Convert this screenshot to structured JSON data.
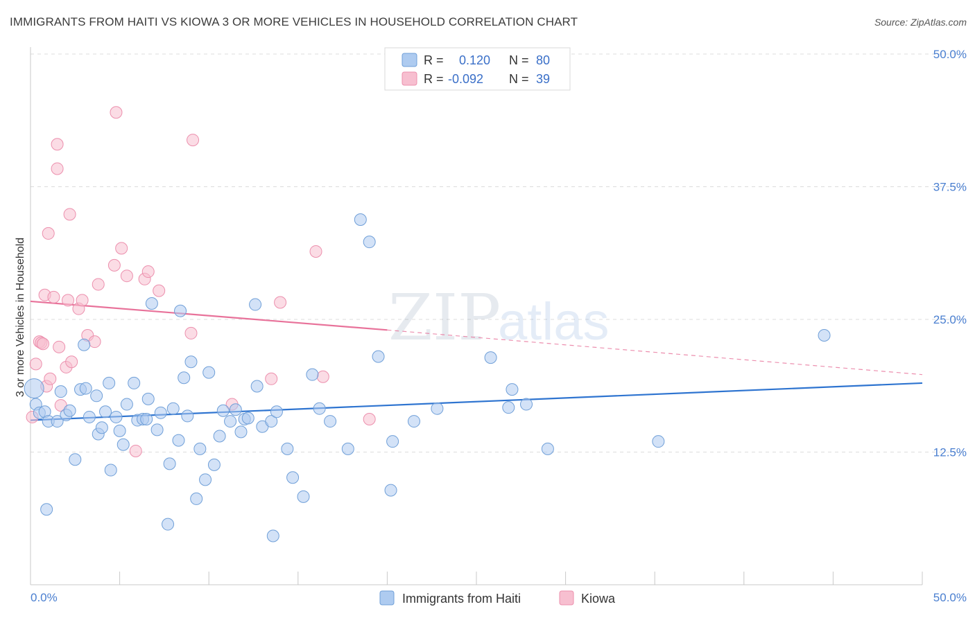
{
  "title": "IMMIGRANTS FROM HAITI VS KIOWA 3 OR MORE VEHICLES IN HOUSEHOLD CORRELATION CHART",
  "source": "Source: ZipAtlas.com",
  "watermark": "ZIPatlas",
  "colors": {
    "blue_fill": "#aecbf0",
    "blue_stroke": "#6f9fd8",
    "blue_line": "#2e74d0",
    "pink_fill": "#f7bfd0",
    "pink_stroke": "#ec8fad",
    "pink_line": "#e8729a",
    "tick_text": "#4a7fd0"
  },
  "legend": {
    "rows": [
      {
        "r_label": "R =",
        "r_value": "0.120",
        "n_label": "N =",
        "n_value": "80"
      },
      {
        "r_label": "R =",
        "r_value": "-0.092",
        "n_label": "N =",
        "n_value": "39"
      }
    ]
  },
  "chart_data": {
    "type": "scatter",
    "xlabel": "",
    "ylabel": "3 or more Vehicles in Household",
    "xlim": [
      0,
      50
    ],
    "ylim": [
      0,
      50
    ],
    "x_tick_labels": [
      "0.0%",
      "50.0%"
    ],
    "y_tick_labels": [
      "12.5%",
      "25.0%",
      "37.5%",
      "50.0%"
    ],
    "y_ticks": [
      12.5,
      25.0,
      37.5,
      50.0
    ],
    "grid": true,
    "legend_position": "bottom-center",
    "series": [
      {
        "name": "Immigrants from Haiti",
        "color": "blue",
        "trend": {
          "x": [
            0,
            50
          ],
          "y": [
            15.5,
            19.0
          ],
          "style": "solid"
        },
        "points": [
          [
            0.2,
            18.5
          ],
          [
            0.3,
            17.0
          ],
          [
            0.5,
            16.2
          ],
          [
            0.8,
            16.3
          ],
          [
            1.0,
            15.4
          ],
          [
            1.5,
            15.4
          ],
          [
            1.7,
            18.2
          ],
          [
            2.0,
            16.0
          ],
          [
            2.2,
            16.4
          ],
          [
            2.5,
            11.8
          ],
          [
            2.8,
            18.4
          ],
          [
            3.0,
            22.6
          ],
          [
            3.1,
            18.5
          ],
          [
            3.3,
            15.8
          ],
          [
            3.7,
            17.8
          ],
          [
            3.8,
            14.2
          ],
          [
            4.0,
            14.8
          ],
          [
            4.2,
            16.3
          ],
          [
            4.4,
            19.0
          ],
          [
            4.5,
            10.8
          ],
          [
            4.8,
            15.8
          ],
          [
            5.0,
            14.5
          ],
          [
            5.2,
            13.2
          ],
          [
            5.4,
            17.0
          ],
          [
            5.8,
            19.0
          ],
          [
            6.0,
            15.5
          ],
          [
            6.3,
            15.6
          ],
          [
            6.5,
            15.6
          ],
          [
            6.6,
            17.5
          ],
          [
            6.8,
            26.5
          ],
          [
            7.1,
            14.6
          ],
          [
            7.3,
            16.2
          ],
          [
            7.7,
            5.7
          ],
          [
            7.8,
            11.4
          ],
          [
            8.0,
            16.6
          ],
          [
            8.3,
            13.6
          ],
          [
            8.4,
            25.8
          ],
          [
            8.6,
            19.5
          ],
          [
            8.8,
            15.9
          ],
          [
            9.0,
            21.0
          ],
          [
            9.3,
            8.1
          ],
          [
            9.5,
            12.8
          ],
          [
            9.8,
            9.9
          ],
          [
            10.0,
            20.0
          ],
          [
            10.3,
            11.3
          ],
          [
            10.6,
            14.0
          ],
          [
            10.8,
            16.4
          ],
          [
            11.2,
            15.4
          ],
          [
            11.5,
            16.5
          ],
          [
            11.8,
            14.4
          ],
          [
            12.0,
            15.6
          ],
          [
            12.2,
            15.7
          ],
          [
            12.6,
            26.4
          ],
          [
            12.7,
            18.7
          ],
          [
            13.0,
            14.9
          ],
          [
            13.5,
            15.4
          ],
          [
            13.6,
            4.6
          ],
          [
            13.8,
            16.3
          ],
          [
            14.4,
            12.8
          ],
          [
            14.7,
            10.1
          ],
          [
            15.3,
            8.3
          ],
          [
            15.8,
            19.8
          ],
          [
            16.2,
            16.6
          ],
          [
            16.8,
            15.4
          ],
          [
            17.8,
            12.8
          ],
          [
            18.5,
            34.4
          ],
          [
            19.0,
            32.3
          ],
          [
            19.5,
            21.5
          ],
          [
            20.2,
            8.9
          ],
          [
            20.3,
            13.5
          ],
          [
            21.5,
            15.4
          ],
          [
            22.8,
            16.6
          ],
          [
            25.8,
            21.4
          ],
          [
            26.8,
            16.7
          ],
          [
            27.0,
            18.4
          ],
          [
            27.8,
            17.0
          ],
          [
            29.0,
            12.8
          ],
          [
            35.2,
            13.5
          ],
          [
            44.5,
            23.5
          ],
          [
            0.9,
            7.1
          ]
        ]
      },
      {
        "name": "Kiowa",
        "color": "pink",
        "trend": {
          "x": [
            0,
            20
          ],
          "y": [
            26.7,
            24.0
          ],
          "style": "solid",
          "extension": {
            "x": [
              20,
              50
            ],
            "y": [
              24.0,
              19.8
            ],
            "style": "dashed"
          }
        },
        "points": [
          [
            0.1,
            15.8
          ],
          [
            0.3,
            20.8
          ],
          [
            0.5,
            22.9
          ],
          [
            0.6,
            22.8
          ],
          [
            0.7,
            22.7
          ],
          [
            0.8,
            27.3
          ],
          [
            0.9,
            18.7
          ],
          [
            1.0,
            33.1
          ],
          [
            1.1,
            19.4
          ],
          [
            1.3,
            27.1
          ],
          [
            1.5,
            39.2
          ],
          [
            1.5,
            41.5
          ],
          [
            1.6,
            22.4
          ],
          [
            1.7,
            16.9
          ],
          [
            2.0,
            20.5
          ],
          [
            2.1,
            26.8
          ],
          [
            2.2,
            34.9
          ],
          [
            2.3,
            21.0
          ],
          [
            2.7,
            26.0
          ],
          [
            2.9,
            26.8
          ],
          [
            3.2,
            23.5
          ],
          [
            3.6,
            22.9
          ],
          [
            3.8,
            28.3
          ],
          [
            4.7,
            30.1
          ],
          [
            4.8,
            44.5
          ],
          [
            5.1,
            31.7
          ],
          [
            5.4,
            29.1
          ],
          [
            5.9,
            12.6
          ],
          [
            6.4,
            28.8
          ],
          [
            6.6,
            29.5
          ],
          [
            7.2,
            27.7
          ],
          [
            9.0,
            23.7
          ],
          [
            9.1,
            41.9
          ],
          [
            11.3,
            17.0
          ],
          [
            13.5,
            19.4
          ],
          [
            14.0,
            26.6
          ],
          [
            16.0,
            31.4
          ],
          [
            16.4,
            19.6
          ],
          [
            19.0,
            15.6
          ]
        ]
      }
    ]
  }
}
